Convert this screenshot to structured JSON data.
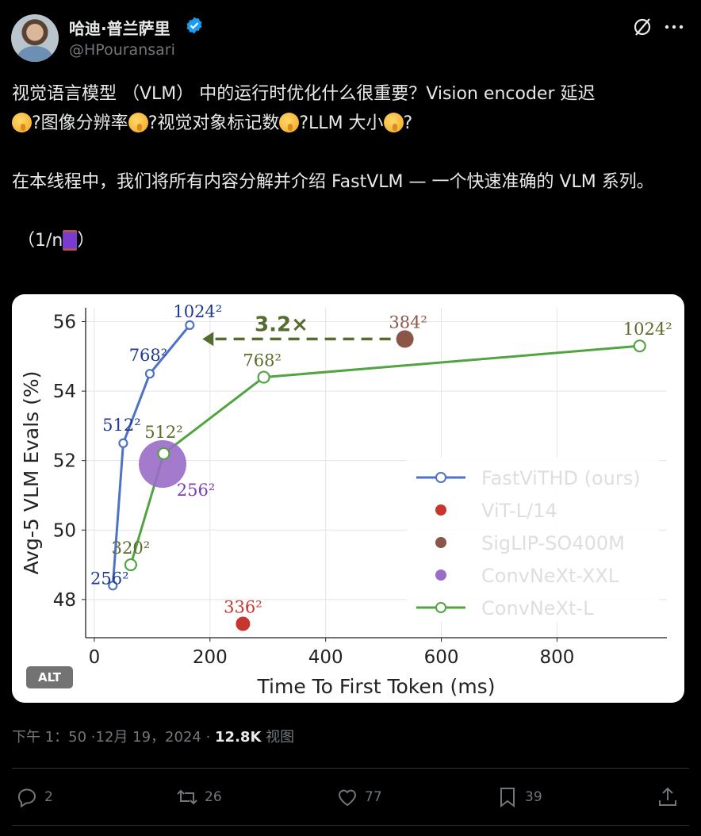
{
  "author": {
    "name": "哈迪·普兰萨里",
    "handle": "@HPouransari"
  },
  "tweet": {
    "line1": "视觉语言模型 （VLM） 中的运行时优化什么很重要？Vision encoder 延迟",
    "line2_parts": [
      "?图像分辨率",
      "?视觉对象标记数",
      "?LLM 大小",
      "?"
    ],
    "para2": "在本线程中，我们将所有内容分解并介绍 FastVLM — 一个快速准确的 VLM 系列。",
    "thread_prefix": "（1/n",
    "thread_suffix": "）"
  },
  "media": {
    "alt_label": "ALT"
  },
  "meta": {
    "time": "下午 1：50 ·12月 19，2024 · ",
    "views": "12.8K",
    "views_label": " 视图"
  },
  "actions": {
    "replies": "2",
    "reposts": "26",
    "likes": "77",
    "bookmarks": "39"
  },
  "chart_data": {
    "type": "line",
    "xlabel": "Time To First Token (ms)",
    "ylabel": "Avg-5 VLM Evals (%)",
    "xlim": [
      -15,
      990
    ],
    "ylim": [
      46.9,
      56.4
    ],
    "xticks": [
      0,
      200,
      400,
      600,
      800
    ],
    "yticks": [
      48,
      50,
      52,
      54,
      56
    ],
    "grid": true,
    "legend_position": "bottom-right",
    "speedup_label": "3.2×",
    "series": [
      {
        "name": "FastViTHD (ours)",
        "color": "#4f72c5",
        "marker": "open-circle",
        "points": [
          {
            "x": 32,
            "y": 48.4,
            "label": "256²"
          },
          {
            "x": 50,
            "y": 52.5,
            "label": "512²"
          },
          {
            "x": 96,
            "y": 54.5,
            "label": "768²"
          },
          {
            "x": 165,
            "y": 55.9,
            "label": "1024²"
          }
        ]
      },
      {
        "name": "ViT-L/14",
        "color": "#c8352e",
        "marker": "dot",
        "points": [
          {
            "x": 257,
            "y": 47.3,
            "label": "336²"
          }
        ]
      },
      {
        "name": "SigLIP-SO400M",
        "color": "#8b5648",
        "marker": "dot",
        "points": [
          {
            "x": 537,
            "y": 55.5,
            "label": "384²"
          }
        ]
      },
      {
        "name": "ConvNeXt-XXL",
        "color": "#9a6bc8",
        "marker": "dot",
        "points": [
          {
            "x": 118,
            "y": 51.9,
            "label": "256²"
          }
        ]
      },
      {
        "name": "ConvNeXt-L",
        "color": "#52a342",
        "marker": "open-circle",
        "points": [
          {
            "x": 63,
            "y": 49.0,
            "label": "320²"
          },
          {
            "x": 120,
            "y": 52.2,
            "label": "512²"
          },
          {
            "x": 293,
            "y": 54.4,
            "label": "768²"
          },
          {
            "x": 943,
            "y": 55.3,
            "label": "1024²"
          }
        ]
      }
    ]
  }
}
